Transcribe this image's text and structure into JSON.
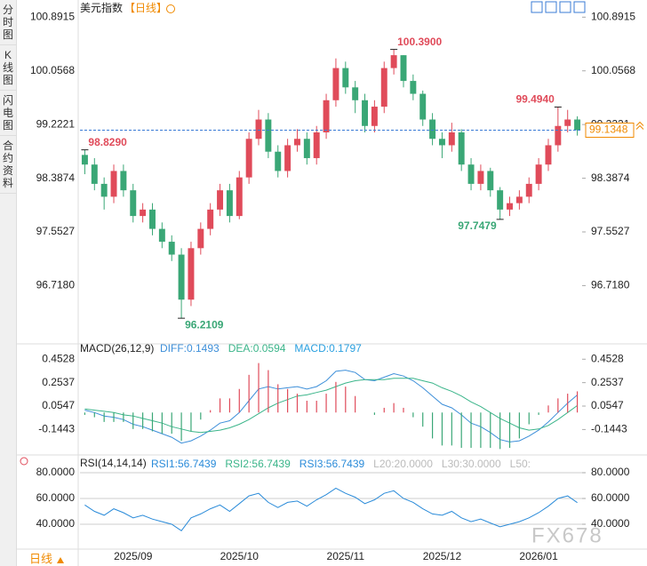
{
  "sidebar": {
    "tabs": [
      "分时图",
      "K线图",
      "闪电图",
      "合约资料"
    ],
    "active": 1
  },
  "header": {
    "toolbar_icons": 4
  },
  "chart_data": [
    {
      "type": "candlestick",
      "title": "美元指数",
      "period": "【日线】",
      "categories": [
        null,
        null,
        null,
        null,
        null,
        "2025/09",
        null,
        null,
        null,
        null,
        null,
        null,
        null,
        null,
        null,
        null,
        "2025/10",
        null,
        null,
        null,
        null,
        null,
        null,
        null,
        null,
        null,
        null,
        "2025/11",
        null,
        null,
        null,
        null,
        null,
        null,
        null,
        null,
        null,
        "2025/12",
        null,
        null,
        null,
        null,
        null,
        null,
        null,
        null,
        null,
        "2026/01",
        null,
        null,
        null,
        null
      ],
      "open": [
        98.75,
        98.6,
        98.3,
        98.1,
        98.5,
        98.2,
        97.8,
        97.9,
        97.6,
        97.4,
        97.2,
        96.5,
        97.3,
        97.6,
        97.9,
        98.2,
        97.8,
        98.4,
        99.0,
        99.3,
        98.8,
        98.5,
        98.9,
        99.0,
        98.7,
        99.1,
        99.6,
        100.1,
        99.8,
        99.6,
        99.2,
        99.5,
        100.1,
        100.3,
        99.9,
        99.7,
        99.3,
        99.0,
        98.9,
        99.1,
        98.6,
        98.3,
        98.5,
        98.2,
        97.9,
        98.0,
        98.1,
        98.3,
        98.6,
        98.9,
        99.2,
        99.3
      ],
      "high": [
        98.829,
        98.7,
        98.4,
        98.6,
        98.6,
        98.3,
        98.0,
        98.0,
        97.7,
        97.5,
        97.3,
        97.4,
        97.7,
        98.0,
        98.3,
        98.3,
        98.5,
        99.1,
        99.45,
        99.4,
        98.9,
        99.0,
        99.15,
        99.1,
        99.2,
        99.7,
        100.25,
        100.2,
        99.9,
        99.7,
        99.6,
        100.2,
        100.39,
        100.3,
        100.0,
        99.75,
        99.4,
        99.1,
        99.25,
        99.15,
        98.7,
        98.6,
        98.55,
        98.25,
        98.1,
        98.2,
        98.4,
        98.7,
        99.0,
        99.494,
        99.45,
        99.35
      ],
      "low": [
        98.45,
        98.2,
        97.9,
        98.0,
        98.1,
        97.7,
        97.7,
        97.5,
        97.3,
        97.1,
        96.2109,
        96.4,
        97.2,
        97.5,
        97.8,
        97.7,
        97.75,
        98.3,
        98.9,
        98.7,
        98.4,
        98.4,
        98.8,
        98.6,
        98.6,
        99.0,
        99.5,
        99.7,
        99.4,
        99.1,
        99.1,
        99.4,
        100.0,
        99.8,
        99.6,
        99.2,
        98.9,
        98.7,
        98.8,
        98.5,
        98.2,
        98.2,
        98.1,
        97.7479,
        97.8,
        97.9,
        98.0,
        98.2,
        98.5,
        98.8,
        99.1,
        99.05
      ],
      "close": [
        98.6,
        98.3,
        98.1,
        98.5,
        98.2,
        97.8,
        97.9,
        97.6,
        97.4,
        97.2,
        96.5,
        97.3,
        97.6,
        97.9,
        98.2,
        97.8,
        98.4,
        99.0,
        99.3,
        98.8,
        98.5,
        98.9,
        99.0,
        98.7,
        99.1,
        99.6,
        100.1,
        99.8,
        99.6,
        99.2,
        99.5,
        100.1,
        100.3,
        99.9,
        99.7,
        99.3,
        99.0,
        98.9,
        99.1,
        98.6,
        98.3,
        98.5,
        98.2,
        97.9,
        98.0,
        98.1,
        98.3,
        98.6,
        98.9,
        99.2,
        99.3,
        99.1348
      ],
      "up_color": "#e04b5a",
      "down_color": "#3aa776",
      "ylim": [
        95.84,
        101.02
      ],
      "yticks": [
        100.8915,
        100.0568,
        99.2221,
        98.3874,
        97.5527,
        {
          "value": 96.718,
          "label": "96.7180"
        }
      ],
      "last_price": 99.1348,
      "annotations": [
        {
          "value": 98.829,
          "label": "98.8290"
        },
        {
          "value": 100.39,
          "label": "100.3900"
        },
        {
          "value": 99.494,
          "label": "99.4940"
        },
        {
          "value": 96.2109,
          "label": "96.2109"
        },
        {
          "value": 97.7479,
          "label": "97.7479"
        }
      ],
      "grid": false
    },
    {
      "type": "macd",
      "title": "MACD(26,12,9)",
      "series": [
        {
          "name": "DIFF:0.1493",
          "color": "#3d8fd9",
          "values": [
            0.02,
            0.0,
            -0.03,
            -0.04,
            -0.06,
            -0.1,
            -0.12,
            -0.15,
            -0.18,
            -0.21,
            -0.26,
            -0.24,
            -0.2,
            -0.15,
            -0.09,
            -0.07,
            0.0,
            0.1,
            0.2,
            0.22,
            0.2,
            0.21,
            0.22,
            0.2,
            0.22,
            0.27,
            0.35,
            0.36,
            0.34,
            0.28,
            0.27,
            0.3,
            0.33,
            0.31,
            0.27,
            0.21,
            0.14,
            0.07,
            0.04,
            -0.02,
            -0.09,
            -0.12,
            -0.17,
            -0.23,
            -0.25,
            -0.24,
            -0.2,
            -0.15,
            -0.08,
            0.0,
            0.08,
            0.1493
          ]
        },
        {
          "name": "DEA:0.0594",
          "color": "#3bb58a",
          "values": [
            0.03,
            0.02,
            0.01,
            0.0,
            -0.02,
            -0.03,
            -0.05,
            -0.07,
            -0.09,
            -0.12,
            -0.14,
            -0.16,
            -0.17,
            -0.16,
            -0.15,
            -0.13,
            -0.1,
            -0.06,
            -0.01,
            0.04,
            0.08,
            0.11,
            0.14,
            0.15,
            0.17,
            0.19,
            0.22,
            0.25,
            0.27,
            0.28,
            0.28,
            0.28,
            0.29,
            0.29,
            0.29,
            0.27,
            0.25,
            0.21,
            0.18,
            0.14,
            0.09,
            0.05,
            0.0,
            -0.05,
            -0.09,
            -0.13,
            -0.15,
            -0.14,
            -0.11,
            -0.06,
            0.0,
            0.0594
          ]
        },
        {
          "name": "MACD:0.1797",
          "color": "#2aa0e0",
          "bars": true,
          "values": [
            -0.02,
            -0.04,
            -0.08,
            -0.08,
            -0.08,
            -0.14,
            -0.14,
            -0.16,
            -0.18,
            -0.18,
            -0.24,
            -0.16,
            -0.06,
            0.02,
            0.12,
            0.12,
            0.2,
            0.32,
            0.42,
            0.36,
            0.24,
            0.2,
            0.16,
            0.1,
            0.1,
            0.16,
            0.26,
            0.22,
            0.14,
            0.0,
            -0.02,
            0.04,
            0.08,
            0.04,
            -0.04,
            -0.12,
            -0.22,
            -0.28,
            -0.28,
            -0.3,
            -0.3,
            -0.3,
            -0.3,
            -0.31,
            -0.3,
            -0.22,
            -0.1,
            -0.02,
            0.06,
            0.12,
            0.16,
            0.1797
          ]
        }
      ],
      "up_color": "#e04b5a",
      "down_color": "#3aa776",
      "ylim": [
        -0.33,
        0.5
      ],
      "yticks": [
        0.4528,
        0.2537,
        0.0547,
        -0.1443
      ],
      "grid": false
    },
    {
      "type": "rsi",
      "title": "RSI(14,14,14)",
      "series": [
        {
          "name": "RSI1:56.7439",
          "color": "#2a8bd9",
          "values": [
            55,
            50,
            47,
            52,
            49,
            45,
            47,
            44,
            42,
            40,
            35,
            45,
            48,
            52,
            55,
            50,
            56,
            62,
            64,
            57,
            53,
            57,
            58,
            54,
            59,
            63,
            68,
            64,
            61,
            56,
            59,
            64,
            66,
            60,
            57,
            52,
            48,
            47,
            50,
            45,
            42,
            44,
            41,
            38,
            40,
            42,
            45,
            49,
            54,
            60,
            62,
            56.7439
          ]
        }
      ],
      "legend_extra": [
        {
          "name": "RSI2:56.7439",
          "color": "#3bb58a"
        },
        {
          "name": "RSI3:56.7439",
          "color": "#2a8bd9"
        },
        {
          "name": "L20:20.0000",
          "color": "#bbbbbb"
        },
        {
          "name": "L30:30.0000",
          "color": "#bbbbbb"
        },
        {
          "name": "L50:",
          "color": "#bbbbbb"
        }
      ],
      "ylim": [
        22.76,
        82.76
      ],
      "yticks": [
        {
          "value": 80,
          "label": "80.0000"
        },
        {
          "value": 60,
          "label": "60.0000"
        },
        {
          "value": 40,
          "label": "40.0000"
        }
      ],
      "grid": true
    }
  ],
  "footer": {
    "period": "日线",
    "watermark": "FX678"
  }
}
